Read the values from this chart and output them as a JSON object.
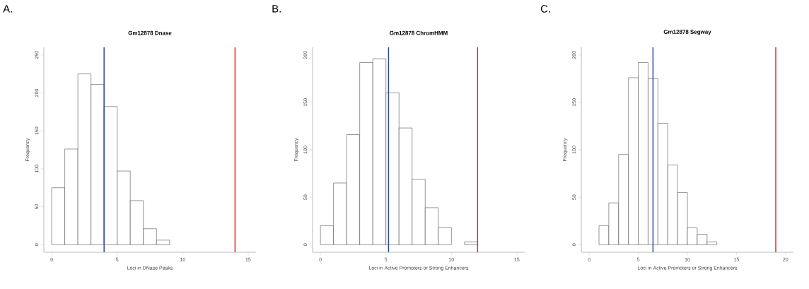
{
  "chart_data": [
    {
      "type": "histogram",
      "title": "Gm12878 Dnase",
      "xlabel": "Loci in DNase Peaks",
      "ylabel": "Frequency",
      "annotations": [
        "A."
      ],
      "color": "#ffffff",
      "bins": [
        0,
        1,
        2,
        3,
        4,
        5,
        6,
        7,
        8,
        9
      ],
      "values": [
        75,
        126,
        225,
        211,
        182,
        97,
        58,
        21,
        6
      ],
      "xlim": [
        -0.6,
        15.6
      ],
      "ylim": [
        -10,
        260
      ],
      "xticks": [
        0,
        5,
        10,
        15
      ],
      "yticks": [
        0,
        50,
        100,
        150,
        200,
        250
      ],
      "ref_lines": [
        {
          "axis": "x",
          "value": 4,
          "color": "#2b4a9a"
        },
        {
          "axis": "x",
          "value": 14,
          "color": "#e0282e"
        }
      ]
    },
    {
      "type": "histogram",
      "title": "Gm12878 ChromHMM",
      "xlabel": "Loci in Active Promoters or Strong Enhancers",
      "ylabel": "Frequency",
      "annotations": [
        "B."
      ],
      "color": "#ffffff",
      "bins": [
        0,
        1,
        2,
        3,
        4,
        5,
        6,
        7,
        8,
        9,
        10,
        11,
        12
      ],
      "values": [
        20,
        65,
        116,
        192,
        196,
        160,
        123,
        69,
        39,
        18,
        0,
        3
      ],
      "xlim": [
        -0.6,
        15.6
      ],
      "ylim": [
        -8,
        208
      ],
      "xticks": [
        0,
        5,
        10,
        15
      ],
      "yticks": [
        0,
        50,
        100,
        150,
        200
      ],
      "ref_lines": [
        {
          "axis": "x",
          "value": 5.2,
          "color": "#2b4a9a"
        },
        {
          "axis": "x",
          "value": 12,
          "color": "#e0282e"
        }
      ]
    },
    {
      "type": "histogram",
      "title": "Gm12878 Segway",
      "xlabel": "Loci in Active Promoters or Strong Enhancers",
      "ylabel": "Frequency",
      "annotations": [
        "C."
      ],
      "color": "#ffffff",
      "bins": [
        1,
        2,
        3,
        4,
        5,
        6,
        7,
        8,
        9,
        10,
        11,
        12,
        13
      ],
      "values": [
        20,
        44,
        95,
        176,
        192,
        175,
        128,
        84,
        55,
        18,
        11,
        3
      ],
      "xlim": [
        -0.8,
        20.8
      ],
      "ylim": [
        -8,
        208
      ],
      "xticks": [
        0,
        5,
        10,
        15,
        20
      ],
      "yticks": [
        0,
        50,
        100,
        150,
        200
      ],
      "ref_lines": [
        {
          "axis": "x",
          "value": 6.5,
          "color": "#2b4a9a"
        },
        {
          "axis": "x",
          "value": 19,
          "color": "#e0282e"
        }
      ]
    }
  ]
}
